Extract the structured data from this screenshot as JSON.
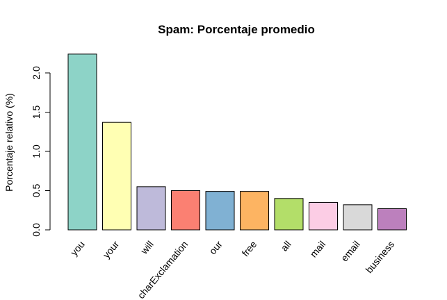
{
  "chart_data": {
    "type": "bar",
    "title": "Spam: Porcentaje promedio",
    "xlabel": "",
    "ylabel": "Porcentaje relativo (%)",
    "categories": [
      "you",
      "your",
      "will",
      "charExclamation",
      "our",
      "free",
      "all",
      "mail",
      "email",
      "business"
    ],
    "values": [
      2.24,
      1.37,
      0.55,
      0.5,
      0.49,
      0.49,
      0.4,
      0.35,
      0.32,
      0.27
    ],
    "colors": [
      "#8DD3C7",
      "#FFFFB3",
      "#BEBADA",
      "#FB8072",
      "#80B1D3",
      "#FDB462",
      "#B3DE69",
      "#FCCDE5",
      "#D9D9D9",
      "#BC80BD"
    ],
    "ylim": [
      0,
      2.3
    ],
    "yticks": [
      "0.0",
      "0.5",
      "1.0",
      "1.5",
      "2.0"
    ],
    "grid": false,
    "legend": "none"
  }
}
